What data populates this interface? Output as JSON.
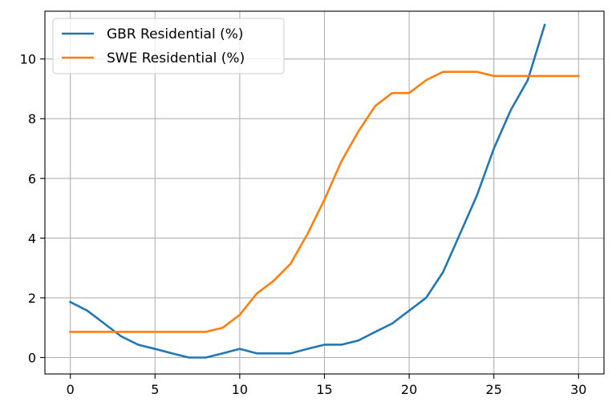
{
  "chart_data": {
    "type": "line",
    "title": "",
    "xlabel": "",
    "ylabel": "",
    "xlim": [
      -1.5,
      31.5
    ],
    "ylim": [
      -0.55,
      11.6
    ],
    "xticks": [
      0,
      5,
      10,
      15,
      20,
      25,
      30
    ],
    "yticks": [
      0,
      2,
      4,
      6,
      8,
      10
    ],
    "xtick_labels": [
      "0",
      "5",
      "10",
      "15",
      "20",
      "25",
      "30"
    ],
    "ytick_labels": [
      "0",
      "2",
      "4",
      "6",
      "8",
      "10"
    ],
    "grid": true,
    "legend_position": "top-left",
    "series": [
      {
        "name": "GBR Residential (%)",
        "color": "#1f77b4",
        "x": [
          0,
          1,
          2,
          3,
          4,
          5,
          6,
          7,
          8,
          9,
          10,
          11,
          12,
          13,
          14,
          15,
          16,
          17,
          18,
          19,
          20,
          21,
          22,
          23,
          24,
          25,
          26,
          27,
          28
        ],
        "values": [
          1.86,
          1.57,
          1.14,
          0.71,
          0.43,
          0.29,
          0.14,
          0.0,
          0.0,
          0.14,
          0.29,
          0.14,
          0.14,
          0.14,
          0.29,
          0.43,
          0.43,
          0.57,
          0.86,
          1.14,
          1.57,
          2.0,
          2.86,
          4.14,
          5.43,
          7.0,
          8.29,
          9.29,
          11.14
        ]
      },
      {
        "name": "SWE Residential (%)",
        "color": "#ff7f0e",
        "x": [
          0,
          1,
          2,
          3,
          4,
          5,
          6,
          7,
          8,
          9,
          10,
          11,
          12,
          13,
          14,
          15,
          16,
          17,
          18,
          19,
          20,
          21,
          22,
          23,
          24,
          25,
          26,
          27,
          28,
          29,
          30
        ],
        "values": [
          0.86,
          0.86,
          0.86,
          0.86,
          0.86,
          0.86,
          0.86,
          0.86,
          0.86,
          1.0,
          1.43,
          2.14,
          2.57,
          3.14,
          4.14,
          5.29,
          6.57,
          7.57,
          8.43,
          8.86,
          8.86,
          9.29,
          9.57,
          9.57,
          9.57,
          9.43,
          9.43,
          9.43,
          9.43,
          9.43,
          9.43
        ]
      }
    ]
  }
}
